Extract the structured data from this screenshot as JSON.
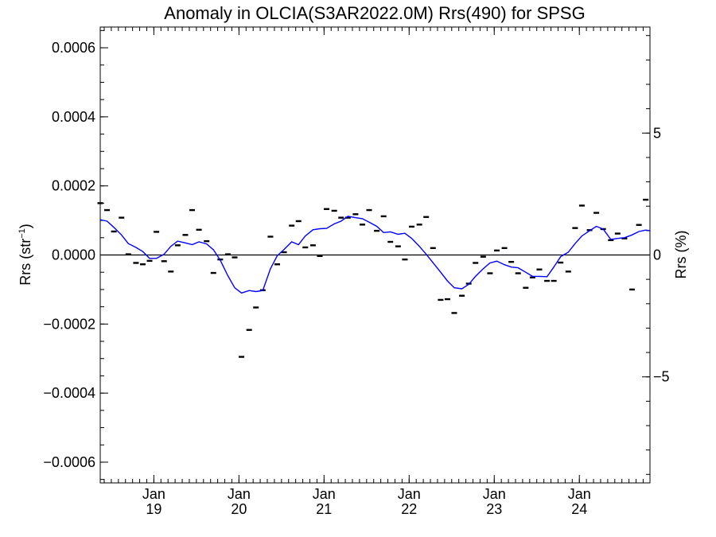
{
  "chart_data": {
    "type": "line",
    "title": "Anomaly in OLCIA(S3AR2022.0M) Rrs(490) for SPSG",
    "ylabel_main": "Rrs (str",
    "ylabel_sup": "−1",
    "ylabel_close": ")",
    "ylabel_right": "Rrs (%)",
    "ylim": [
      -0.00066,
      0.00066
    ],
    "ylim_right": [
      -9.35,
      9.35
    ],
    "yticks": [
      {
        "value": 0.0006,
        "label": "0.0006"
      },
      {
        "value": 0.0004,
        "label": "0.0004"
      },
      {
        "value": 0.0002,
        "label": "0.0002"
      },
      {
        "value": 0.0,
        "label": "0.0000"
      },
      {
        "value": -0.0002,
        "label": "−0.0002"
      },
      {
        "value": -0.0004,
        "label": "−0.0004"
      },
      {
        "value": -0.0006,
        "label": "−0.0006"
      }
    ],
    "yticks_right": [
      {
        "value": 5,
        "label": "5"
      },
      {
        "value": 0,
        "label": "0"
      },
      {
        "value": -5,
        "label": "−5"
      }
    ],
    "xlim": [
      2018.37,
      2024.83
    ],
    "xticks": [
      {
        "value": 2019.0,
        "month": "Jan",
        "year": "19"
      },
      {
        "value": 2020.0,
        "month": "Jan",
        "year": "20"
      },
      {
        "value": 2021.0,
        "month": "Jan",
        "year": "21"
      },
      {
        "value": 2022.0,
        "month": "Jan",
        "year": "22"
      },
      {
        "value": 2023.0,
        "month": "Jan",
        "year": "23"
      },
      {
        "value": 2024.0,
        "month": "Jan",
        "year": "24"
      }
    ],
    "series": [
      {
        "kind": "monthly",
        "color": "#000000",
        "x": [
          2018.37,
          2018.45,
          2018.53,
          2018.62,
          2018.7,
          2018.79,
          2018.87,
          2018.95,
          2019.03,
          2019.12,
          2019.2,
          2019.28,
          2019.37,
          2019.45,
          2019.53,
          2019.62,
          2019.7,
          2019.78,
          2019.87,
          2019.95,
          2020.03,
          2020.12,
          2020.2,
          2020.28,
          2020.37,
          2020.45,
          2020.53,
          2020.62,
          2020.7,
          2020.78,
          2020.87,
          2020.95,
          2021.03,
          2021.12,
          2021.2,
          2021.28,
          2021.37,
          2021.45,
          2021.53,
          2021.62,
          2021.7,
          2021.78,
          2021.87,
          2021.95,
          2022.03,
          2022.12,
          2022.2,
          2022.28,
          2022.37,
          2022.45,
          2022.53,
          2022.62,
          2022.7,
          2022.78,
          2022.87,
          2022.95,
          2023.03,
          2023.12,
          2023.2,
          2023.28,
          2023.37,
          2023.45,
          2023.53,
          2023.62,
          2023.7,
          2023.78,
          2023.87,
          2023.95,
          2024.03,
          2024.12,
          2024.2,
          2024.28,
          2024.37,
          2024.45,
          2024.53,
          2024.62,
          2024.7,
          2024.78
        ],
        "values": [
          0.00015,
          0.00013,
          6.8e-05,
          0.000108,
          2e-06,
          -2.3e-05,
          -2.7e-05,
          -1.7e-05,
          6.7e-05,
          -1.8e-05,
          -4.8e-05,
          2.8e-05,
          5.8e-05,
          0.00013,
          7.3e-05,
          4e-05,
          -5.2e-05,
          -1.3e-05,
          2e-06,
          -7e-06,
          -0.000295,
          -0.000217,
          -0.000152,
          -0.000102,
          5.3e-05,
          -2.7e-05,
          8e-06,
          8.5e-05,
          9.8e-05,
          2.2e-05,
          2.8e-05,
          -3e-06,
          0.000133,
          0.000128,
          0.000108,
          0.000108,
          0.000118,
          8.8e-05,
          0.00013,
          7e-05,
          0.000112,
          3.8e-05,
          2.5e-05,
          -1.3e-05,
          8.2e-05,
          8.8e-05,
          0.00011,
          2e-05,
          -0.00013,
          -0.000128,
          -0.000168,
          -0.000118,
          -8.3e-05,
          -2.3e-05,
          -5e-06,
          -5.3e-05,
          1.3e-05,
          2e-05,
          -2e-05,
          -5.3e-05,
          -9.5e-05,
          -6.5e-05,
          -4.2e-05,
          -7.5e-05,
          -7.5e-05,
          -2.2e-05,
          -4.8e-05,
          7.8e-05,
          0.000143,
          7.2e-05,
          0.000122,
          7.5e-05,
          4.3e-05,
          6.2e-05,
          4.8e-05,
          -0.0001,
          8.7e-05,
          0.00016
        ]
      },
      {
        "kind": "running-mean",
        "color": "#0000ff",
        "x": [
          2018.37,
          2018.45,
          2018.53,
          2018.62,
          2018.7,
          2018.79,
          2018.87,
          2018.95,
          2019.03,
          2019.12,
          2019.2,
          2019.28,
          2019.37,
          2019.45,
          2019.53,
          2019.62,
          2019.7,
          2019.78,
          2019.87,
          2019.95,
          2020.03,
          2020.12,
          2020.2,
          2020.28,
          2020.37,
          2020.45,
          2020.53,
          2020.62,
          2020.7,
          2020.78,
          2020.87,
          2020.95,
          2021.03,
          2021.12,
          2021.2,
          2021.28,
          2021.37,
          2021.45,
          2021.53,
          2021.62,
          2021.7,
          2021.78,
          2021.87,
          2021.95,
          2022.03,
          2022.12,
          2022.2,
          2022.28,
          2022.37,
          2022.45,
          2022.53,
          2022.62,
          2022.7,
          2022.78,
          2022.87,
          2022.95,
          2023.03,
          2023.12,
          2023.2,
          2023.28,
          2023.37,
          2023.45,
          2023.53,
          2023.62,
          2023.7,
          2023.78,
          2023.87,
          2023.95,
          2024.03,
          2024.12,
          2024.2,
          2024.28,
          2024.37,
          2024.45,
          2024.53,
          2024.62,
          2024.7,
          2024.78,
          2024.83
        ],
        "values": [
          0.000102,
          9.8e-05,
          8e-05,
          5.8e-05,
          3.3e-05,
          2.2e-05,
          1e-05,
          -1e-05,
          -1e-05,
          2e-06,
          2.5e-05,
          4e-05,
          3.5e-05,
          3e-05,
          3.8e-05,
          3.2e-05,
          1.5e-05,
          -1.5e-05,
          -6e-05,
          -9.5e-05,
          -0.00011,
          -0.000103,
          -0.000106,
          -0.000103,
          -4e-05,
          -2e-06,
          1.6e-05,
          3.8e-05,
          3e-05,
          5.5e-05,
          7.3e-05,
          7.6e-05,
          7.7e-05,
          9e-05,
          9.8e-05,
          0.000112,
          0.000108,
          0.000105,
          9.5e-05,
          8.3e-05,
          6.5e-05,
          6.7e-05,
          6e-05,
          6.3e-05,
          4.8e-05,
          2.5e-05,
          2e-06,
          -2.2e-05,
          -5e-05,
          -7.5e-05,
          -9.5e-05,
          -9.8e-05,
          -8.5e-05,
          -6.2e-05,
          -4e-05,
          -2.3e-05,
          -1.8e-05,
          -2.8e-05,
          -3.5e-05,
          -3.7e-05,
          -5e-05,
          -6.2e-05,
          -6.2e-05,
          -6.3e-05,
          -3.5e-05,
          -5e-06,
          8e-06,
          3.3e-05,
          5.5e-05,
          7e-05,
          8.3e-05,
          7.5e-05,
          4.5e-05,
          4.8e-05,
          5e-05,
          5.8e-05,
          6.8e-05,
          7.2e-05,
          7e-05
        ]
      }
    ]
  }
}
